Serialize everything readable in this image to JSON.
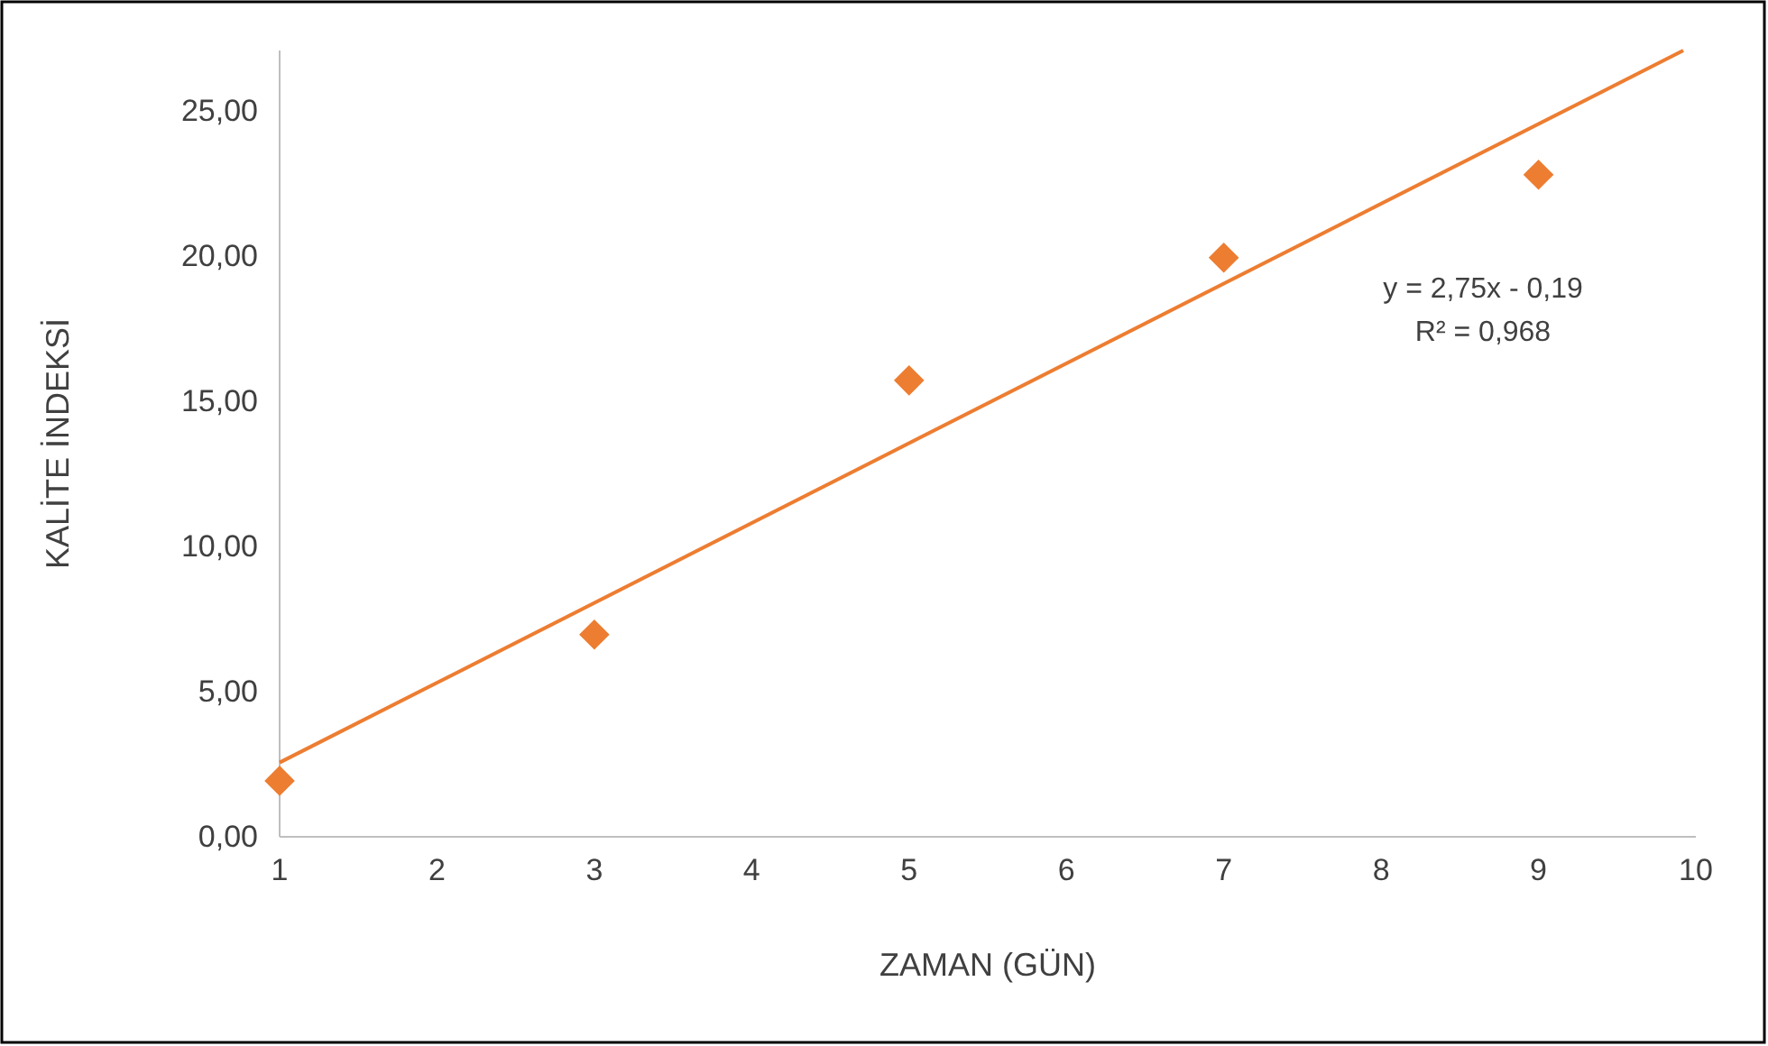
{
  "chart_data": {
    "type": "scatter",
    "xlabel": "ZAMAN (GÜN)",
    "ylabel": "KALİTE İNDEKSİ",
    "x": [
      1,
      3,
      5,
      7,
      9
    ],
    "series": [
      {
        "color": "#ed7d31",
        "marker": "diamond",
        "values": [
          1.93,
          6.97,
          15.73,
          19.96,
          22.82
        ]
      },
      {
        "type": "line",
        "color": "#ed7d31",
        "marker": "none",
        "line_style": "solid",
        "x": [
          1,
          9.92
        ],
        "values": [
          2.56,
          27.1
        ]
      }
    ],
    "xlim": [
      1,
      10
    ],
    "xticks": [
      1,
      2,
      3,
      4,
      5,
      6,
      7,
      8,
      9,
      10
    ],
    "ylim": [
      0,
      27.1
    ],
    "yticks": [
      {
        "value": 0,
        "label": "0,00"
      },
      {
        "value": 5,
        "label": "5,00"
      },
      {
        "value": 10,
        "label": "10,00"
      },
      {
        "value": 15,
        "label": "15,00"
      },
      {
        "value": 20,
        "label": "20,00"
      },
      {
        "value": 25,
        "label": "25,00"
      }
    ],
    "grid": false,
    "annotations": [
      "y = 2,75x - 0,19",
      "R² = 0,968"
    ]
  }
}
